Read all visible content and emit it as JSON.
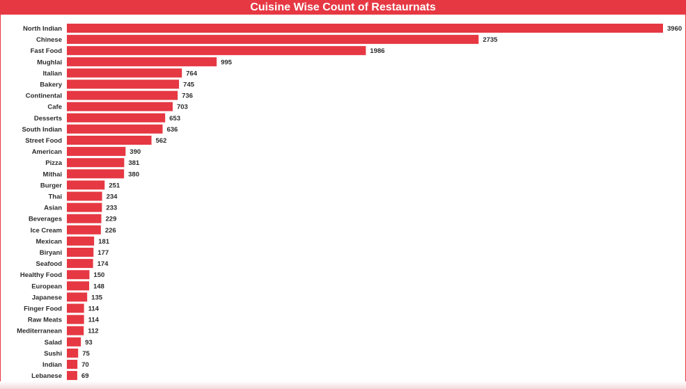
{
  "title": "Cuisine Wise Count of Restaurnats",
  "colors": {
    "bar": "#e63843",
    "title_bg": "#e63843",
    "title_text": "#ffffff"
  },
  "chart_data": {
    "type": "bar",
    "orientation": "horizontal",
    "title": "Cuisine Wise Count of Restaurnats",
    "xlabel": "",
    "ylabel": "",
    "grid": false,
    "data_labels": true,
    "categories": [
      "North Indian",
      "Chinese",
      "Fast Food",
      "Mughlai",
      "Italian",
      "Bakery",
      "Continental",
      "Cafe",
      "Desserts",
      "South Indian",
      "Street Food",
      "American",
      "Pizza",
      "Mithai",
      "Burger",
      "Thai",
      "Asian",
      "Beverages",
      "Ice Cream",
      "Mexican",
      "Biryani",
      "Seafood",
      "Healthy Food",
      "European",
      "Japanese",
      "Finger Food",
      "Raw Meats",
      "Mediterranean",
      "Salad",
      "Sushi",
      "Indian",
      "Lebanese"
    ],
    "values": [
      3960,
      2735,
      1986,
      995,
      764,
      745,
      736,
      703,
      653,
      636,
      562,
      390,
      381,
      380,
      251,
      234,
      233,
      229,
      226,
      181,
      177,
      174,
      150,
      148,
      135,
      114,
      114,
      112,
      93,
      75,
      70,
      69
    ],
    "xlim": [
      0,
      3960
    ]
  }
}
